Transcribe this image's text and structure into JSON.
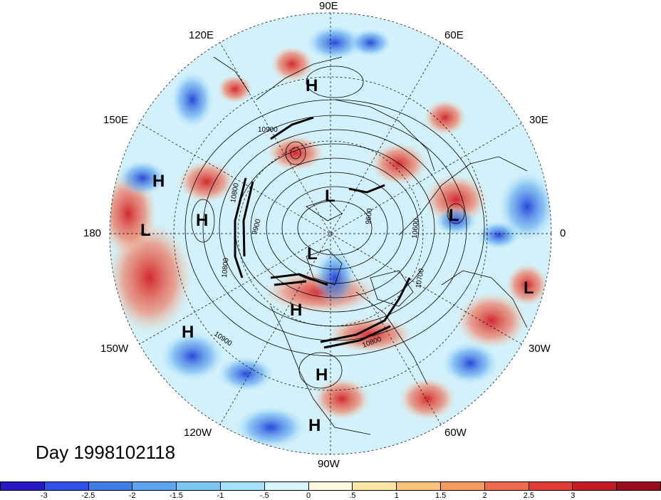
{
  "title": "Day 1998102118",
  "longitude_labels": [
    {
      "id": "90e",
      "text": "90E"
    },
    {
      "id": "60e",
      "text": "60E"
    },
    {
      "id": "30e",
      "text": "30E"
    },
    {
      "id": "0",
      "text": "0"
    },
    {
      "id": "30w",
      "text": "30W"
    },
    {
      "id": "60w",
      "text": "60W"
    },
    {
      "id": "90w",
      "text": "90W"
    },
    {
      "id": "120w",
      "text": "120W"
    },
    {
      "id": "150w",
      "text": "150W"
    },
    {
      "id": "180",
      "text": "180"
    },
    {
      "id": "150e",
      "text": "150E"
    },
    {
      "id": "120e",
      "text": "120E"
    }
  ],
  "pressure_systems": [
    "H",
    "H",
    "H",
    "L",
    "L",
    "L",
    "L",
    "L",
    "H",
    "H",
    "H",
    "H"
  ],
  "contour_labels": [
    "10900",
    "10800",
    "9900",
    "10800",
    "9600",
    "10600",
    "10700",
    "10800",
    "10900"
  ],
  "colorbar": {
    "colors": [
      "#2818c8",
      "#2f4fe6",
      "#3f7de6",
      "#5aa5ee",
      "#79c6f3",
      "#a3e3fb",
      "#d6f5fd",
      "#fffbe0",
      "#fde6a3",
      "#fcc27a",
      "#f79a5f",
      "#f06a4c",
      "#e23a35",
      "#c41a26",
      "#9a0c1c"
    ],
    "tick_labels": [
      "-3",
      "-2.5",
      "-2",
      "-1.5",
      "-1",
      "-.5",
      "0",
      ".5",
      "1",
      "1.5",
      "2",
      "2.5",
      "3"
    ]
  }
}
